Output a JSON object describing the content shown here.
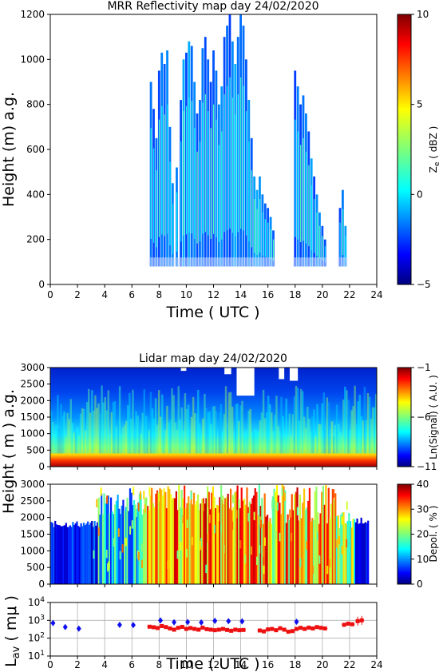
{
  "chart_data": [
    {
      "type": "heatmap",
      "title": "MRR Reflectivity map day 24/02/2020",
      "xlabel": "Time ( UTC )",
      "ylabel": "Height (m) a.g.",
      "xlim": [
        0,
        24
      ],
      "ylim": [
        0,
        1200
      ],
      "xticks": [
        "0",
        "2",
        "4",
        "6",
        "8",
        "10",
        "12",
        "14",
        "16",
        "18",
        "20",
        "22",
        "24"
      ],
      "yticks": [
        "0",
        "200",
        "400",
        "600",
        "800",
        "1000",
        "1200"
      ],
      "colorbar": {
        "label": "Ze ( dBZ )",
        "label_main": "Z",
        "label_sub": "e",
        "label_rest": " ( dBZ )",
        "range": [
          -5,
          10
        ],
        "ticks": [
          "10",
          "5",
          "0",
          "−5"
        ],
        "colormap": "jet"
      },
      "echo_columns": [
        {
          "x": 7.4,
          "top": 900
        },
        {
          "x": 7.6,
          "top": 780
        },
        {
          "x": 7.8,
          "top": 650
        },
        {
          "x": 8.0,
          "top": 950
        },
        {
          "x": 8.2,
          "top": 1030
        },
        {
          "x": 8.4,
          "top": 980
        },
        {
          "x": 8.6,
          "top": 1040
        },
        {
          "x": 8.8,
          "top": 700
        },
        {
          "x": 9.0,
          "top": 450
        },
        {
          "x": 9.3,
          "top": 520
        },
        {
          "x": 9.6,
          "top": 820
        },
        {
          "x": 9.8,
          "top": 1000
        },
        {
          "x": 10.0,
          "top": 1030
        },
        {
          "x": 10.2,
          "top": 1080
        },
        {
          "x": 10.4,
          "top": 1060
        },
        {
          "x": 10.6,
          "top": 900
        },
        {
          "x": 10.8,
          "top": 760
        },
        {
          "x": 11.0,
          "top": 820
        },
        {
          "x": 11.2,
          "top": 1050
        },
        {
          "x": 11.4,
          "top": 1100
        },
        {
          "x": 11.6,
          "top": 1000
        },
        {
          "x": 11.8,
          "top": 900
        },
        {
          "x": 12.0,
          "top": 1040
        },
        {
          "x": 12.2,
          "top": 950
        },
        {
          "x": 12.4,
          "top": 800
        },
        {
          "x": 12.6,
          "top": 880
        },
        {
          "x": 12.8,
          "top": 1100
        },
        {
          "x": 13.0,
          "top": 1150
        },
        {
          "x": 13.2,
          "top": 1200
        },
        {
          "x": 13.4,
          "top": 1080
        },
        {
          "x": 13.6,
          "top": 980
        },
        {
          "x": 13.8,
          "top": 1100
        },
        {
          "x": 14.0,
          "top": 1200
        },
        {
          "x": 14.2,
          "top": 1150
        },
        {
          "x": 14.4,
          "top": 1000
        },
        {
          "x": 14.6,
          "top": 820
        },
        {
          "x": 14.8,
          "top": 650
        },
        {
          "x": 15.0,
          "top": 480
        },
        {
          "x": 15.2,
          "top": 420
        },
        {
          "x": 15.4,
          "top": 480
        },
        {
          "x": 15.6,
          "top": 400
        },
        {
          "x": 15.8,
          "top": 360
        },
        {
          "x": 16.0,
          "top": 340
        },
        {
          "x": 16.2,
          "top": 300
        },
        {
          "x": 16.4,
          "top": 240
        },
        {
          "x": 18.0,
          "top": 950
        },
        {
          "x": 18.2,
          "top": 880
        },
        {
          "x": 18.4,
          "top": 800
        },
        {
          "x": 18.6,
          "top": 840
        },
        {
          "x": 18.8,
          "top": 760
        },
        {
          "x": 19.0,
          "top": 680
        },
        {
          "x": 19.2,
          "top": 560
        },
        {
          "x": 19.4,
          "top": 480
        },
        {
          "x": 19.6,
          "top": 400
        },
        {
          "x": 19.8,
          "top": 320
        },
        {
          "x": 20.0,
          "top": 260
        },
        {
          "x": 20.2,
          "top": 200
        },
        {
          "x": 21.3,
          "top": 340
        },
        {
          "x": 21.5,
          "top": 420
        },
        {
          "x": 21.7,
          "top": 260
        }
      ]
    },
    {
      "type": "heatmap",
      "title": "Lidar map day 24/02/2020",
      "ylabel": "Height ( m ) a.g.",
      "xlim": [
        0,
        24
      ],
      "ylim": [
        0,
        3000
      ],
      "yticks": [
        "0",
        "500",
        "1000",
        "1500",
        "2000",
        "2500",
        "3000"
      ],
      "colorbar": {
        "label": "Ln(Signal) ( A.U. )",
        "range": [
          -11,
          -1
        ],
        "ticks": [
          "−1",
          "−6",
          "−11"
        ],
        "colormap": "jet"
      }
    },
    {
      "type": "heatmap",
      "ylim": [
        0,
        3000
      ],
      "yticks": [
        "0",
        "500",
        "1000",
        "1500",
        "2000",
        "2500",
        "3000"
      ],
      "colorbar": {
        "label": "Depol. ( % )",
        "range": [
          0,
          40
        ],
        "ticks": [
          "40",
          "30",
          "20",
          "10",
          "0"
        ],
        "colormap": "jet"
      }
    },
    {
      "type": "scatter",
      "xlabel": "Time ( UTC )",
      "ylabel": "Lav ( mμ )",
      "ylabel_main": "L",
      "ylabel_sub": "av",
      "ylabel_rest": " ( mμ )",
      "yscale": "log",
      "xlim": [
        0,
        24
      ],
      "ylim": [
        10,
        10000
      ],
      "grid": true,
      "xticks": [
        "0",
        "2",
        "4",
        "6",
        "8",
        "10",
        "12",
        "14",
        "16",
        "18",
        "20",
        "22",
        "24"
      ],
      "yticks": [
        {
          "base": "10",
          "exp": "4",
          "value": 10000
        },
        {
          "base": "10",
          "exp": "3",
          "value": 1000
        },
        {
          "base": "10",
          "exp": "2",
          "value": 100
        },
        {
          "base": "10",
          "exp": "1",
          "value": 10
        }
      ],
      "series": [
        {
          "marker": "diamond",
          "color": "#1010ee",
          "points": [
            [
              0.2,
              700
            ],
            [
              1.1,
              420
            ],
            [
              2.1,
              340
            ],
            [
              5.1,
              560
            ],
            [
              6.1,
              540
            ],
            [
              8.1,
              980
            ],
            [
              9.1,
              780
            ],
            [
              10.1,
              800
            ],
            [
              11.1,
              760
            ],
            [
              12.1,
              930
            ],
            [
              13.1,
              900
            ],
            [
              14.1,
              880
            ],
            [
              18.1,
              830
            ]
          ]
        },
        {
          "marker": "star",
          "color": "#ee1010",
          "errorbars": true,
          "points": [
            [
              7.3,
              440
            ],
            [
              7.6,
              410
            ],
            [
              7.9,
              370
            ],
            [
              8.2,
              480
            ],
            [
              8.5,
              420
            ],
            [
              8.8,
              350
            ],
            [
              9.1,
              300
            ],
            [
              9.4,
              380
            ],
            [
              9.7,
              430
            ],
            [
              10.0,
              330
            ],
            [
              10.3,
              370
            ],
            [
              10.6,
              330
            ],
            [
              10.9,
              300
            ],
            [
              11.2,
              390
            ],
            [
              11.5,
              320
            ],
            [
              11.8,
              300
            ],
            [
              12.1,
              280
            ],
            [
              12.4,
              300
            ],
            [
              12.7,
              330
            ],
            [
              13.0,
              290
            ],
            [
              13.3,
              260
            ],
            [
              13.6,
              300
            ],
            [
              13.9,
              280
            ],
            [
              14.2,
              290
            ],
            [
              15.4,
              270
            ],
            [
              15.7,
              240
            ],
            [
              16.0,
              310
            ],
            [
              16.3,
              330
            ],
            [
              16.6,
              280
            ],
            [
              16.9,
              360
            ],
            [
              17.2,
              300
            ],
            [
              17.5,
              230
            ],
            [
              17.8,
              250
            ],
            [
              18.1,
              330
            ],
            [
              18.4,
              380
            ],
            [
              18.7,
              330
            ],
            [
              19.0,
              390
            ],
            [
              19.3,
              350
            ],
            [
              19.6,
              420
            ],
            [
              19.9,
              380
            ],
            [
              20.2,
              350
            ],
            [
              21.6,
              560
            ],
            [
              21.9,
              650
            ],
            [
              22.2,
              600
            ],
            [
              22.6,
              900
            ],
            [
              22.9,
              1000
            ]
          ]
        }
      ]
    }
  ]
}
